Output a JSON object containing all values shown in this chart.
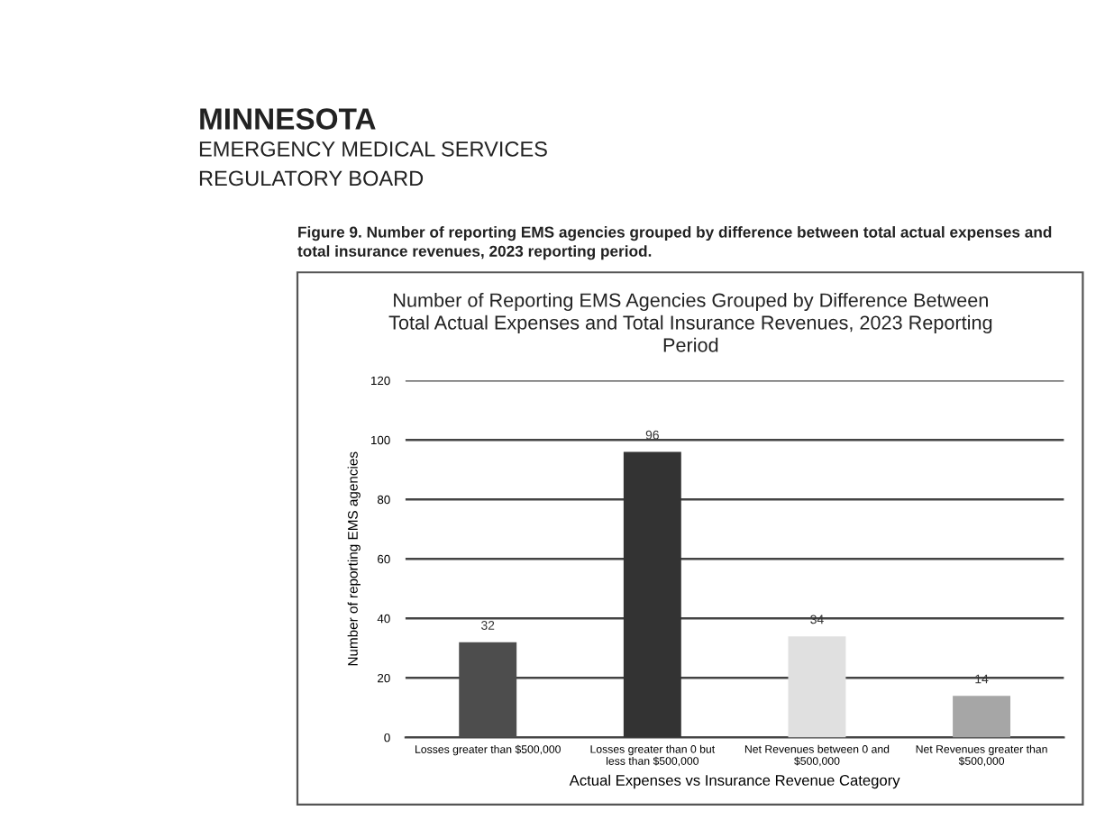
{
  "chart_data": {
    "type": "bar",
    "title": "Number of Reporting EMS Agencies Grouped by Difference Between Total Actual Expenses and Total Insurance Revenues, 2023 Reporting Period",
    "subtitle": "Figure 9. Number of reporting EMS agencies grouped by difference between total actual expenses and total insurance revenues, 2023 reporting period.",
    "annotations": [
      "MINNESOTA",
      "EMERGENCY MEDICAL SERVICES",
      "REGULATORY BOARD"
    ],
    "xlabel": "Actual Expenses vs Insurance Revenue Category",
    "ylabel": "Number of reporting EMS agencies",
    "categories": [
      "Losses greater than $500,000",
      "Losses greater than 0 but less than $500,000",
      "Net Revenues between 0 and $500,000",
      "Net Revenues greater than $500,000"
    ],
    "values": [
      32,
      96,
      34,
      14
    ],
    "colors": [
      "#4d4d4d",
      "#333333",
      "#e0e0e0",
      "#a6a6a6"
    ],
    "ylim": [
      0,
      120
    ],
    "yticks": [
      0,
      20,
      40,
      60,
      80,
      100,
      120
    ],
    "grid": "y",
    "data_labels": true,
    "legend": false
  }
}
